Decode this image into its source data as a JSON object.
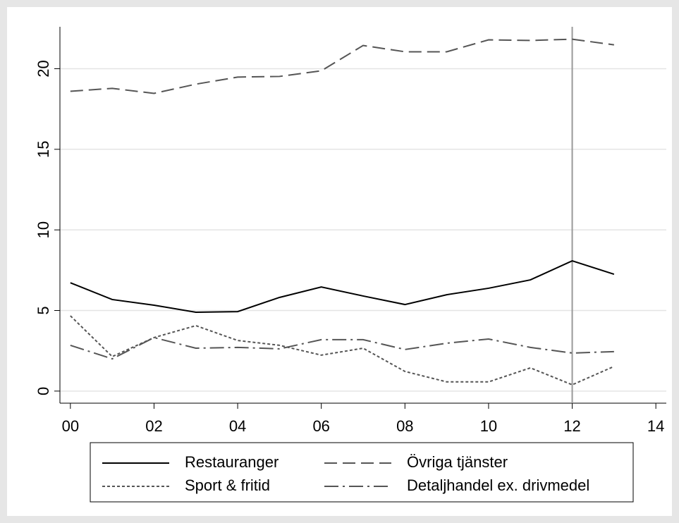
{
  "chart_data": {
    "type": "line",
    "x": [
      0,
      1,
      2,
      3,
      4,
      5,
      6,
      7,
      8,
      9,
      10,
      11,
      12,
      13
    ],
    "series": [
      {
        "name": "Restauranger",
        "color": "#000000",
        "dash": "none",
        "values": [
          6.72,
          5.68,
          5.33,
          4.89,
          4.93,
          5.81,
          6.46,
          5.9,
          5.37,
          5.98,
          6.38,
          6.9,
          8.08,
          7.25
        ]
      },
      {
        "name": "Övriga tjänster",
        "color": "#555555",
        "dash": "18,8",
        "values": [
          18.6,
          18.78,
          18.47,
          19.04,
          19.48,
          19.52,
          19.87,
          21.44,
          21.05,
          21.05,
          21.79,
          21.75,
          21.83,
          21.48
        ]
      },
      {
        "name": "Sport & fritid",
        "color": "#555555",
        "dash": "4,3",
        "values": [
          4.67,
          2.14,
          3.32,
          4.06,
          3.14,
          2.84,
          2.23,
          2.66,
          1.22,
          0.57,
          0.57,
          1.44,
          0.39,
          1.53
        ]
      },
      {
        "name": "Detaljhandel ex. drivmedel",
        "color": "#555555",
        "dash": "20,6,3,6",
        "values": [
          2.84,
          2.0,
          3.32,
          2.66,
          2.71,
          2.62,
          3.19,
          3.19,
          2.58,
          2.97,
          3.23,
          2.71,
          2.36,
          2.45
        ]
      }
    ],
    "xlim": [
      -0.25,
      14.25
    ],
    "xticks": [
      {
        "value": 0,
        "label": "00"
      },
      {
        "value": 2,
        "label": "02"
      },
      {
        "value": 4,
        "label": "04"
      },
      {
        "value": 6,
        "label": "06"
      },
      {
        "value": 8,
        "label": "08"
      },
      10,
      12,
      14
    ],
    "ylim": [
      -0.75,
      22.6
    ],
    "yticks": [
      0,
      5,
      10,
      15,
      20
    ],
    "grid": true,
    "xline": 12,
    "legend": "bottom"
  }
}
